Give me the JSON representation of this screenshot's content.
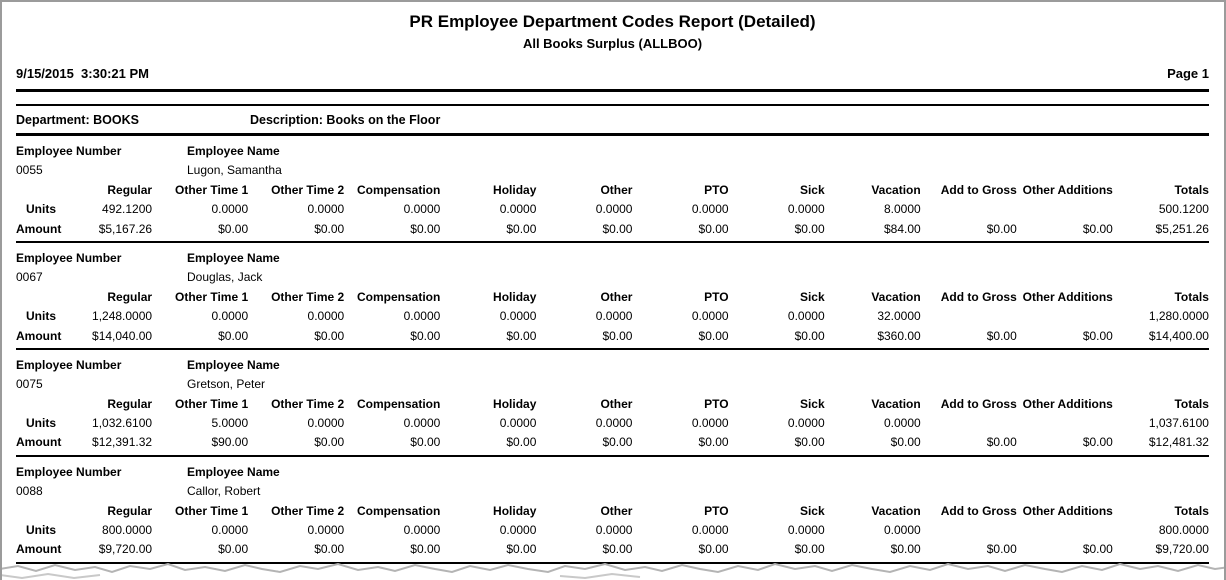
{
  "report": {
    "title": "PR Employee Department Codes Report (Detailed)",
    "subtitle": "All Books Surplus (ALLBOO)",
    "datetime": "9/15/2015  3:30:21 PM",
    "page": "Page 1"
  },
  "department": {
    "label": "Department:",
    "name": "BOOKS",
    "description_label": "Description:",
    "description": "Books on the Floor"
  },
  "labels": {
    "employee_number": "Employee Number",
    "employee_name": "Employee Name",
    "units": "Units",
    "amount": "Amount"
  },
  "columns": [
    "Regular",
    "Other Time 1",
    "Other Time 2",
    "Compensation",
    "Holiday",
    "Other",
    "PTO",
    "Sick",
    "Vacation",
    "Add to Gross",
    "Other Additions",
    "Totals"
  ],
  "employees": [
    {
      "number": "0055",
      "name": "Lugon, Samantha",
      "units": [
        "492.1200",
        "0.0000",
        "0.0000",
        "0.0000",
        "0.0000",
        "0.0000",
        "0.0000",
        "0.0000",
        "8.0000",
        "",
        "",
        "500.1200"
      ],
      "amount": [
        "$5,167.26",
        "$0.00",
        "$0.00",
        "$0.00",
        "$0.00",
        "$0.00",
        "$0.00",
        "$0.00",
        "$84.00",
        "$0.00",
        "$0.00",
        "$5,251.26"
      ]
    },
    {
      "number": "0067",
      "name": "Douglas, Jack",
      "units": [
        "1,248.0000",
        "0.0000",
        "0.0000",
        "0.0000",
        "0.0000",
        "0.0000",
        "0.0000",
        "0.0000",
        "32.0000",
        "",
        "",
        "1,280.0000"
      ],
      "amount": [
        "$14,040.00",
        "$0.00",
        "$0.00",
        "$0.00",
        "$0.00",
        "$0.00",
        "$0.00",
        "$0.00",
        "$360.00",
        "$0.00",
        "$0.00",
        "$14,400.00"
      ]
    },
    {
      "number": "0075",
      "name": "Gretson, Peter",
      "units": [
        "1,032.6100",
        "5.0000",
        "0.0000",
        "0.0000",
        "0.0000",
        "0.0000",
        "0.0000",
        "0.0000",
        "0.0000",
        "",
        "",
        "1,037.6100"
      ],
      "amount": [
        "$12,391.32",
        "$90.00",
        "$0.00",
        "$0.00",
        "$0.00",
        "$0.00",
        "$0.00",
        "$0.00",
        "$0.00",
        "$0.00",
        "$0.00",
        "$12,481.32"
      ]
    },
    {
      "number": "0088",
      "name": "Callor, Robert",
      "units": [
        "800.0000",
        "0.0000",
        "0.0000",
        "0.0000",
        "0.0000",
        "0.0000",
        "0.0000",
        "0.0000",
        "0.0000",
        "",
        "",
        "800.0000"
      ],
      "amount": [
        "$9,720.00",
        "$0.00",
        "$0.00",
        "$0.00",
        "$0.00",
        "$0.00",
        "$0.00",
        "$0.00",
        "$0.00",
        "$0.00",
        "$0.00",
        "$9,720.00"
      ]
    }
  ],
  "colors": {
    "rule": "#000000",
    "frame": "#9b9b9b",
    "tear": "#b4b4b4"
  }
}
